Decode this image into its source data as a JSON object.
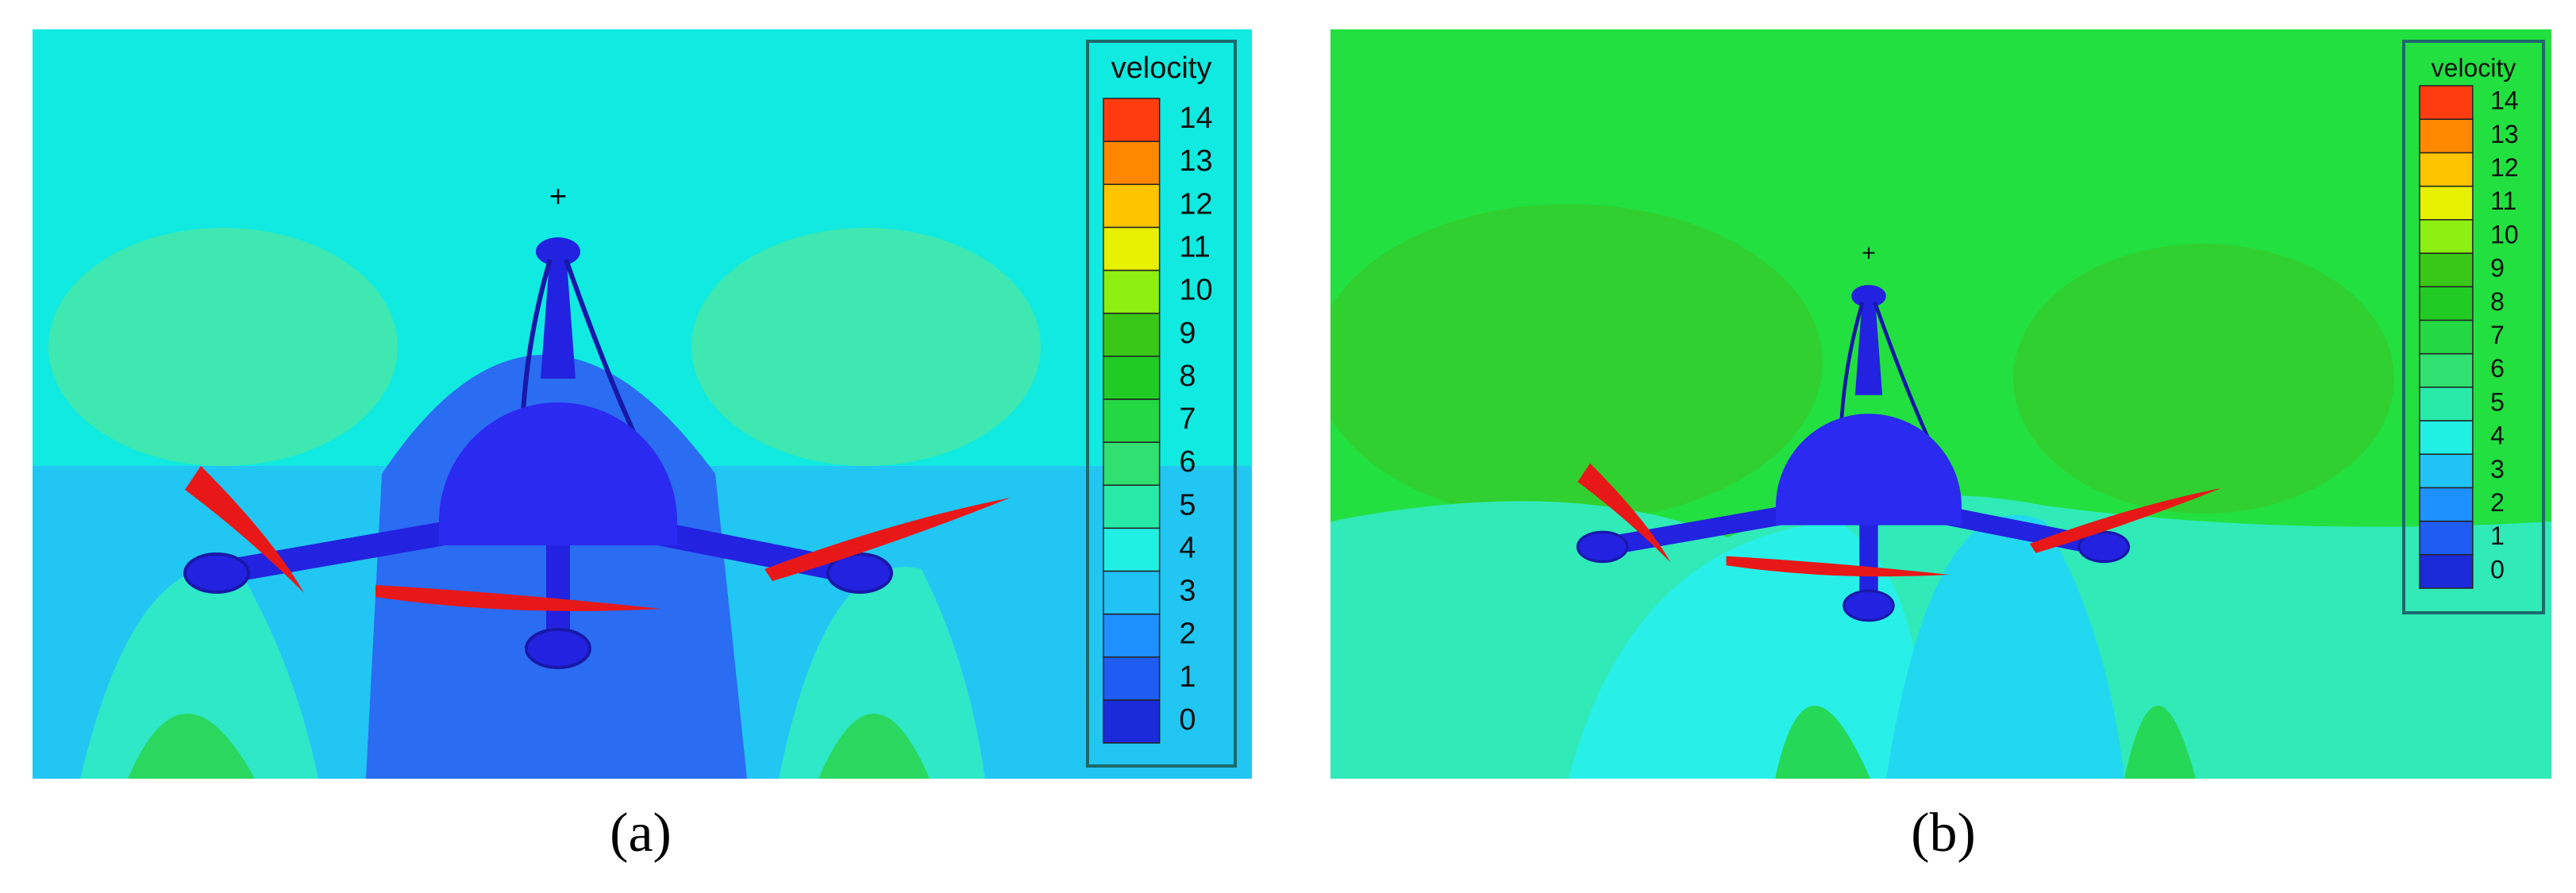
{
  "panels": [
    {
      "label": "(a)",
      "legend": {
        "title": "velocity",
        "ticks": [
          0,
          1,
          2,
          3,
          4,
          5,
          6,
          7,
          8,
          9,
          10,
          11,
          12,
          13,
          14
        ]
      }
    },
    {
      "label": "(b)",
      "legend": {
        "title": "velocity",
        "ticks": [
          0,
          1,
          2,
          3,
          4,
          5,
          6,
          7,
          8,
          9,
          10,
          11,
          12,
          13,
          14
        ]
      }
    }
  ]
}
